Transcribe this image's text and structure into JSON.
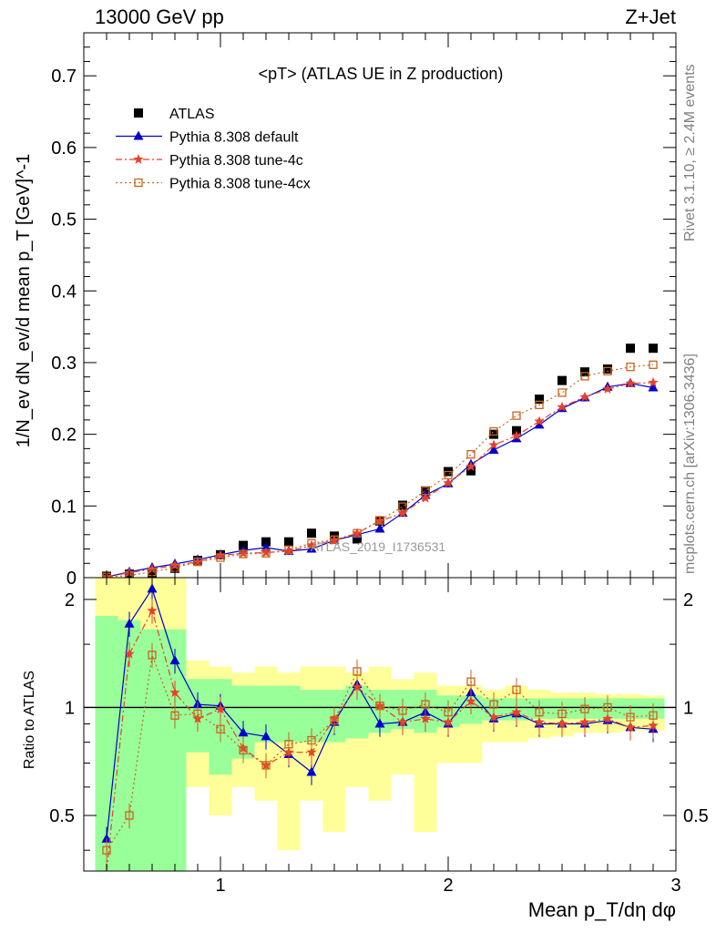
{
  "header": {
    "left_label": "13000 GeV pp",
    "right_label": "Z+Jet"
  },
  "side_labels": {
    "rivet": "Rivet 3.1.10, ≥ 2.4M events",
    "mcplots": "mcplots.cern.ch [arXiv:1306.3436]"
  },
  "watermark": "ATLAS_2019_I1736531",
  "colors": {
    "atlas": "#000000",
    "default": "#0000cc",
    "tune4c": "#e8402a",
    "tune4cx": "#c8641e",
    "band_inner": "#99ff99",
    "band_outer": "#ffff99"
  },
  "chart_data": [
    {
      "type": "scatter",
      "panel": "main",
      "title": "<pT> (ATLAS UE in Z production)",
      "ylabel": "1/N_ev dN_ev/d mean p_T [GeV]^-1",
      "xlabel": "",
      "xlim": [
        0.4,
        3.0
      ],
      "ylim": [
        0,
        0.76
      ],
      "yticks": [
        "0",
        "0.1",
        "0.2",
        "0.3",
        "0.4",
        "0.5",
        "0.6",
        "0.7"
      ],
      "legend_position": "top-left",
      "x": [
        0.5,
        0.6,
        0.7,
        0.8,
        0.9,
        1.0,
        1.1,
        1.2,
        1.3,
        1.4,
        1.5,
        1.6,
        1.7,
        1.8,
        1.9,
        2.0,
        2.1,
        2.2,
        2.3,
        2.4,
        2.5,
        2.6,
        2.7,
        2.8,
        2.9
      ],
      "series": [
        {
          "name": "ATLAS",
          "marker": "square",
          "values": [
            0.002,
            0.005,
            0.007,
            0.013,
            0.024,
            0.032,
            0.045,
            0.05,
            0.05,
            0.062,
            0.058,
            0.054,
            0.079,
            0.101,
            0.121,
            0.148,
            0.149,
            0.2,
            0.205,
            0.249,
            0.275,
            0.287,
            0.291,
            0.32,
            0.32
          ]
        },
        {
          "name": "Pythia 8.308 default",
          "marker": "triangle",
          "values": [
            0.001,
            0.008,
            0.014,
            0.019,
            0.025,
            0.032,
            0.038,
            0.042,
            0.037,
            0.04,
            0.052,
            0.06,
            0.068,
            0.09,
            0.115,
            0.131,
            0.158,
            0.178,
            0.194,
            0.213,
            0.236,
            0.251,
            0.266,
            0.271,
            0.265
          ]
        },
        {
          "name": "Pythia 8.308 tune-4c",
          "marker": "star",
          "values": [
            0.001,
            0.007,
            0.012,
            0.017,
            0.022,
            0.031,
            0.034,
            0.035,
            0.037,
            0.045,
            0.052,
            0.062,
            0.079,
            0.09,
            0.111,
            0.132,
            0.155,
            0.185,
            0.198,
            0.218,
            0.238,
            0.252,
            0.263,
            0.271,
            0.272
          ]
        },
        {
          "name": "Pythia 8.308 tune-4cx",
          "marker": "open-square",
          "values": [
            0.001,
            0.003,
            0.008,
            0.014,
            0.022,
            0.028,
            0.033,
            0.034,
            0.039,
            0.048,
            0.053,
            0.062,
            0.08,
            0.099,
            0.121,
            0.143,
            0.172,
            0.204,
            0.226,
            0.241,
            0.258,
            0.281,
            0.288,
            0.294,
            0.297
          ]
        }
      ]
    },
    {
      "type": "line",
      "panel": "ratio",
      "ylabel": "Ratio to ATLAS",
      "xlabel": "Mean p_T/dη dφ",
      "xlim": [
        0.4,
        3.0
      ],
      "ylim": [
        0.35,
        2.3
      ],
      "xticks": [
        "1",
        "2",
        "3"
      ],
      "yticks": [
        "0.5",
        "1",
        "2"
      ],
      "x": [
        0.5,
        0.6,
        0.7,
        0.8,
        0.9,
        1.0,
        1.1,
        1.2,
        1.3,
        1.4,
        1.5,
        1.6,
        1.7,
        1.8,
        1.9,
        2.0,
        2.1,
        2.2,
        2.3,
        2.4,
        2.5,
        2.6,
        2.7,
        2.8,
        2.9
      ],
      "series": [
        {
          "name": "Pythia 8.308 default",
          "values": [
            0.43,
            1.71,
            2.14,
            1.35,
            1.02,
            1.01,
            0.85,
            0.83,
            0.74,
            0.66,
            0.91,
            1.16,
            0.9,
            0.91,
            0.97,
            0.9,
            1.1,
            0.93,
            0.96,
            0.9,
            0.9,
            0.9,
            0.92,
            0.88,
            0.87
          ]
        },
        {
          "name": "Pythia 8.308 tune-4c",
          "values": [
            0.3,
            1.41,
            1.86,
            1.1,
            0.93,
            0.99,
            0.77,
            0.69,
            0.75,
            0.75,
            0.93,
            1.14,
            1.01,
            0.91,
            0.93,
            0.91,
            1.04,
            0.94,
            0.97,
            0.91,
            0.9,
            0.91,
            0.93,
            0.88,
            0.89
          ]
        },
        {
          "name": "Pythia 8.308 tune-4cx",
          "values": [
            0.4,
            0.5,
            1.4,
            0.95,
            0.96,
            0.87,
            0.76,
            0.69,
            0.79,
            0.81,
            0.92,
            1.26,
            1.01,
            0.98,
            1.02,
            0.97,
            1.18,
            1.02,
            1.12,
            0.97,
            0.96,
            0.99,
            1.0,
            0.94,
            0.95
          ]
        }
      ],
      "band_outer": [
        [
          0.4,
          2.3
        ],
        [
          0.35,
          2.3
        ],
        [
          0.35,
          2.3
        ],
        [
          0.35,
          2.3
        ],
        [
          0.6,
          1.35
        ],
        [
          0.5,
          1.3
        ],
        [
          0.6,
          1.25
        ],
        [
          0.55,
          1.3
        ],
        [
          0.4,
          1.25
        ],
        [
          0.55,
          1.3
        ],
        [
          0.45,
          1.3
        ],
        [
          0.6,
          1.25
        ],
        [
          0.55,
          1.3
        ],
        [
          0.65,
          1.2
        ],
        [
          0.45,
          1.25
        ],
        [
          0.7,
          1.15
        ],
        [
          0.7,
          1.15
        ],
        [
          0.8,
          1.12
        ],
        [
          0.8,
          1.15
        ],
        [
          0.82,
          1.12
        ],
        [
          0.83,
          1.1
        ],
        [
          0.85,
          1.1
        ],
        [
          0.85,
          1.09
        ],
        [
          0.86,
          1.09
        ],
        [
          0.86,
          1.08
        ]
      ],
      "band_inner": [
        [
          0.35,
          1.8
        ],
        [
          0.35,
          1.75
        ],
        [
          0.35,
          1.65
        ],
        [
          0.35,
          1.65
        ],
        [
          0.75,
          1.2
        ],
        [
          0.65,
          1.2
        ],
        [
          0.72,
          1.15
        ],
        [
          0.8,
          1.15
        ],
        [
          0.8,
          1.15
        ],
        [
          0.8,
          1.12
        ],
        [
          0.8,
          1.12
        ],
        [
          0.82,
          1.15
        ],
        [
          0.85,
          1.12
        ],
        [
          0.87,
          1.12
        ],
        [
          0.85,
          1.12
        ],
        [
          0.88,
          1.08
        ],
        [
          0.9,
          1.08
        ],
        [
          0.92,
          1.06
        ],
        [
          0.92,
          1.06
        ],
        [
          0.93,
          1.06
        ],
        [
          0.93,
          1.06
        ],
        [
          0.93,
          1.06
        ],
        [
          0.93,
          1.06
        ],
        [
          0.93,
          1.06
        ],
        [
          0.93,
          1.06
        ]
      ]
    }
  ]
}
